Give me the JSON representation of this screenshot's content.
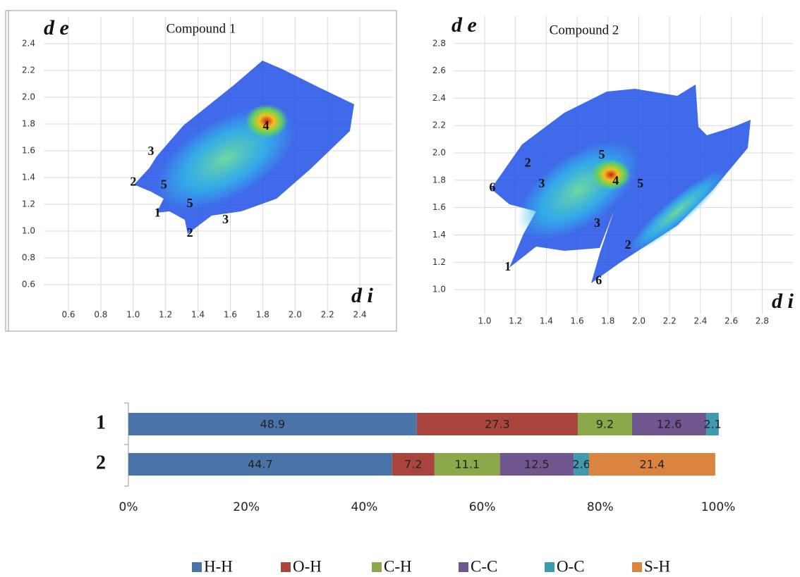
{
  "chart_data": [
    {
      "type": "density",
      "title": "Compound 1",
      "ylabel": "d e",
      "xlabel": "d i",
      "xlim": [
        0.45,
        2.6
      ],
      "ylim": [
        0.4,
        2.6
      ],
      "xticks": [
        0.6,
        0.8,
        {
          "value": 1.0,
          "label": "1.0"
        },
        1.2,
        1.4,
        1.6,
        1.8,
        {
          "value": 2.0,
          "label": "2.0"
        },
        2.2,
        2.4
      ],
      "yticks": [
        0.6,
        0.8,
        {
          "value": 1.0,
          "label": "1.0"
        },
        1.2,
        1.4,
        1.6,
        1.8,
        {
          "value": 2.0,
          "label": "2.0"
        },
        2.2,
        2.4
      ],
      "grid": true,
      "annotations": [
        {
          "text": "4",
          "x": 1.82,
          "y": 1.78
        },
        {
          "text": "3",
          "x": 1.11,
          "y": 1.59
        },
        {
          "text": "2",
          "x": 1.0,
          "y": 1.36
        },
        {
          "text": "5",
          "x": 1.19,
          "y": 1.34
        },
        {
          "text": "1",
          "x": 1.15,
          "y": 1.13
        },
        {
          "text": "5",
          "x": 1.35,
          "y": 1.2
        },
        {
          "text": "3",
          "x": 1.57,
          "y": 1.08
        },
        {
          "text": "2",
          "x": 1.35,
          "y": 0.98
        }
      ]
    },
    {
      "type": "density",
      "title": "Compound 2",
      "ylabel": "d e",
      "xlabel": "d i",
      "xlim": [
        0.8,
        3.0
      ],
      "ylim": [
        0.82,
        3.0
      ],
      "xticks": [
        {
          "value": 1.0,
          "label": "1.0"
        },
        1.2,
        1.4,
        1.6,
        1.8,
        {
          "value": 2.0,
          "label": "2.0"
        },
        2.2,
        2.4,
        2.6,
        2.8
      ],
      "yticks": [
        {
          "value": 1.0,
          "label": "1.0"
        },
        1.2,
        1.4,
        1.6,
        1.8,
        {
          "value": 2.0,
          "label": "2.0"
        },
        2.2,
        2.4,
        2.6,
        2.8
      ],
      "grid": true,
      "annotations": [
        {
          "text": "5",
          "x": 1.76,
          "y": 1.98
        },
        {
          "text": "2",
          "x": 1.28,
          "y": 1.92
        },
        {
          "text": "3",
          "x": 1.37,
          "y": 1.77
        },
        {
          "text": "6",
          "x": 1.05,
          "y": 1.74
        },
        {
          "text": "4",
          "x": 1.85,
          "y": 1.79
        },
        {
          "text": "5",
          "x": 2.01,
          "y": 1.77
        },
        {
          "text": "3",
          "x": 1.73,
          "y": 1.48
        },
        {
          "text": "2",
          "x": 1.93,
          "y": 1.32
        },
        {
          "text": "1",
          "x": 1.15,
          "y": 1.16
        },
        {
          "text": "6",
          "x": 1.74,
          "y": 1.06
        }
      ]
    },
    {
      "type": "stacked-bar",
      "categories": [
        "1",
        "2"
      ],
      "xlim": [
        0,
        100
      ],
      "xticks": [
        {
          "value": 0,
          "label": "0%"
        },
        {
          "value": 20,
          "label": "20%"
        },
        {
          "value": 40,
          "label": "40%"
        },
        {
          "value": 60,
          "label": "60%"
        },
        {
          "value": 80,
          "label": "80%"
        },
        {
          "value": 100,
          "label": "100%"
        }
      ],
      "legend": "bottom",
      "series": [
        {
          "name": "H-H",
          "color": "#4a74a8",
          "values": [
            48.9,
            44.7
          ]
        },
        {
          "name": "O-H",
          "color": "#a9443f",
          "values": [
            27.3,
            7.2
          ]
        },
        {
          "name": "C-H",
          "color": "#8ba84b",
          "values": [
            9.2,
            11.1
          ]
        },
        {
          "name": "C-C",
          "color": "#6f568e",
          "values": [
            12.6,
            12.5
          ]
        },
        {
          "name": "O-C",
          "color": "#3f9aae",
          "values": [
            2.1,
            2.6
          ]
        },
        {
          "name": "S-H",
          "color": "#db8440",
          "values": [
            null,
            21.4
          ]
        }
      ]
    }
  ]
}
